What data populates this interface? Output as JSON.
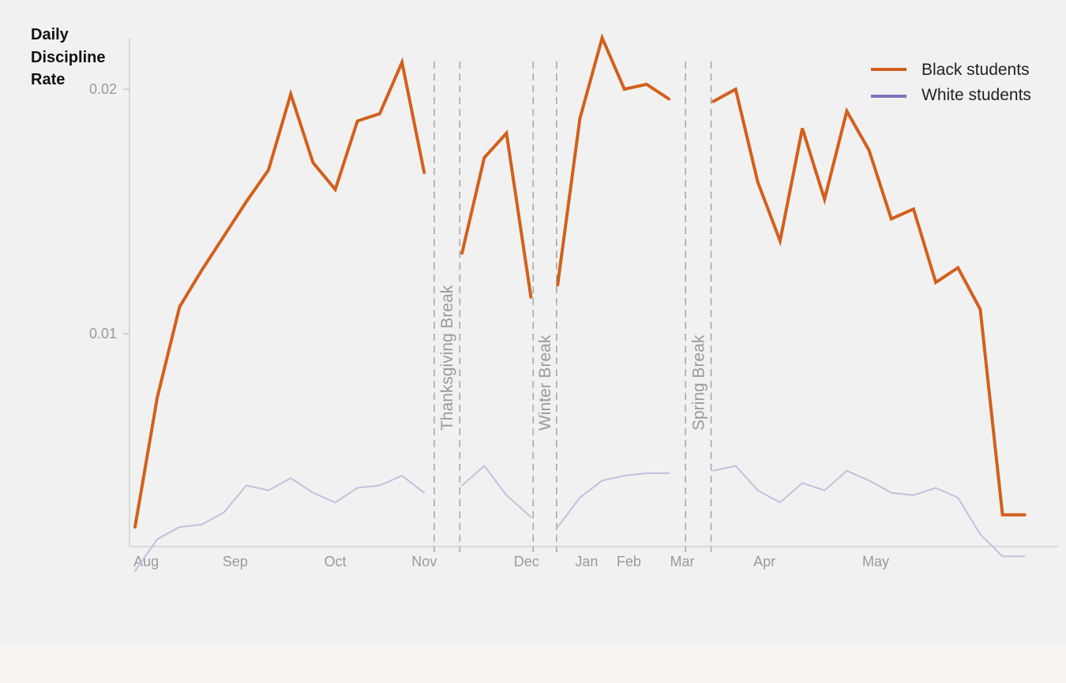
{
  "chart_data": {
    "type": "line",
    "ylabel": [
      "Daily",
      "Discipline",
      "Rate"
    ],
    "ylim": [
      0.0013,
      0.0221
    ],
    "yticks": [
      {
        "value": 0.01,
        "label": "0.01"
      },
      {
        "value": 0.02,
        "label": "0.02"
      }
    ],
    "months": [
      {
        "label": "Aug",
        "x": 0.5
      },
      {
        "label": "Sep",
        "x": 4.5
      },
      {
        "label": "Oct",
        "x": 9
      },
      {
        "label": "Nov",
        "x": 13
      },
      {
        "label": "Dec",
        "x": 17.6
      },
      {
        "label": "Jan",
        "x": 20.3
      },
      {
        "label": "Feb",
        "x": 22.2
      },
      {
        "label": "Mar",
        "x": 24.6
      },
      {
        "label": "Apr",
        "x": 28.3
      },
      {
        "label": "May",
        "x": 33.3
      }
    ],
    "xlim": [
      -0.25,
      41.5
    ],
    "breaks": [
      {
        "label": "Thanksgiving Break",
        "start": 13.45,
        "end": 14.6
      },
      {
        "label": "Winter Break",
        "start": 17.9,
        "end": 18.95
      },
      {
        "label": "Spring Break",
        "start": 24.75,
        "end": 25.9
      }
    ],
    "series": [
      {
        "name": "Black students",
        "color": "#d2601c",
        "segments": [
          {
            "x": [
              0,
              1,
              2,
              3,
              4,
              5,
              6,
              7,
              8,
              9,
              10,
              11,
              12,
              13
            ],
            "y": [
              0.0021,
              0.0074,
              0.0111,
              0.0126,
              0.014,
              0.0154,
              0.0167,
              0.0198,
              0.017,
              0.0159,
              0.0187,
              0.019,
              0.0211,
              0.0166
            ]
          },
          {
            "x": [
              14.7,
              15.7,
              16.7,
              17.8
            ],
            "y": [
              0.0133,
              0.0172,
              0.0182,
              0.0115
            ]
          },
          {
            "x": [
              19.0,
              20.0,
              21.0,
              22.0,
              23.0,
              24.0
            ],
            "y": [
              0.012,
              0.0188,
              0.0221,
              0.02,
              0.0202,
              0.0196
            ]
          },
          {
            "x": [
              26.0,
              27.0,
              28.0,
              29.0,
              30.0,
              31.0,
              32.0,
              33.0,
              34.0,
              35.0,
              36.0,
              37.0,
              38.0,
              39.0,
              40.0
            ],
            "y": [
              0.0195,
              0.02,
              0.0162,
              0.0138,
              0.0184,
              0.0155,
              0.0191,
              0.0175,
              0.0147,
              0.0151,
              0.0121,
              0.0127,
              0.011,
              0.0026,
              0.0026
            ]
          }
        ]
      },
      {
        "name": "White students",
        "color": "#c3bfdf",
        "legend_color": "#7e74bd",
        "segments": [
          {
            "x": [
              0,
              1,
              2,
              3,
              4,
              5,
              6,
              7,
              8,
              9,
              10,
              11,
              12,
              13
            ],
            "y": [
              0.0003,
              0.0016,
              0.0021,
              0.0022,
              0.0027,
              0.0038,
              0.0036,
              0.0041,
              0.0035,
              0.0031,
              0.0037,
              0.0038,
              0.0042,
              0.0035
            ]
          },
          {
            "x": [
              14.7,
              15.7,
              16.7,
              17.8
            ],
            "y": [
              0.0038,
              0.0046,
              0.0034,
              0.0025
            ]
          },
          {
            "x": [
              19.0,
              20.0,
              21.0,
              22.0,
              23.0,
              24.0
            ],
            "y": [
              0.0021,
              0.0033,
              0.004,
              0.0042,
              0.0043,
              0.0043
            ]
          },
          {
            "x": [
              26.0,
              27.0,
              28.0,
              29.0,
              30.0,
              31.0,
              32.0,
              33.0,
              34.0,
              35.0,
              36.0,
              37.0,
              38.0,
              39.0,
              40.0
            ],
            "y": [
              0.0044,
              0.0046,
              0.0036,
              0.0031,
              0.0039,
              0.0036,
              0.0044,
              0.004,
              0.0035,
              0.0034,
              0.0037,
              0.0033,
              0.0018,
              0.0009,
              0.0009
            ]
          }
        ]
      }
    ],
    "legend": {
      "position": "top-right"
    }
  }
}
